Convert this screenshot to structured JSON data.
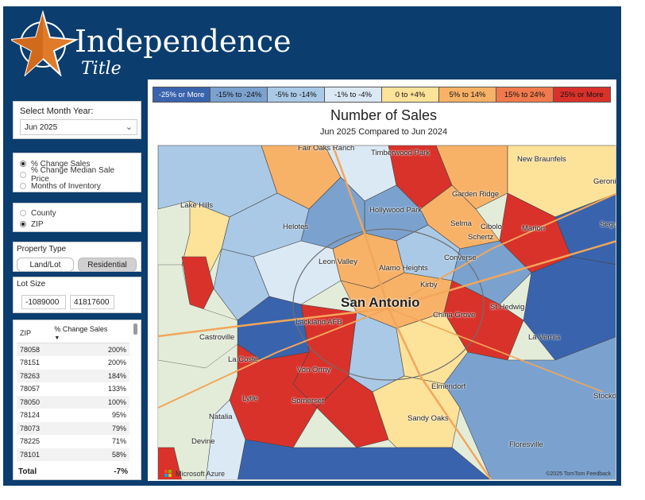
{
  "brand": {
    "name": "Independence",
    "sub": "Title"
  },
  "month_filter": {
    "label": "Select Month Year:",
    "value": "Jun 2025"
  },
  "metric_options": [
    {
      "label": "% Change Sales",
      "selected": true
    },
    {
      "label": "% Change Median Sale Price",
      "selected": false
    },
    {
      "label": "Months of Inventory",
      "selected": false
    }
  ],
  "geo_options": [
    {
      "label": "County",
      "selected": false
    },
    {
      "label": "ZIP",
      "selected": true
    }
  ],
  "property_type": {
    "label": "Property Type",
    "options": [
      "Land/Lot",
      "Residential"
    ],
    "selected": "Residential"
  },
  "lot_size": {
    "label": "Lot Size",
    "min": "-1089000",
    "max": "41817600"
  },
  "zip_table": {
    "headers": [
      "ZIP",
      "% Change Sales"
    ],
    "rows": [
      [
        "78058",
        "200%"
      ],
      [
        "78151",
        "200%"
      ],
      [
        "78263",
        "184%"
      ],
      [
        "78057",
        "133%"
      ],
      [
        "78050",
        "100%"
      ],
      [
        "78124",
        "95%"
      ],
      [
        "78073",
        "79%"
      ],
      [
        "78225",
        "71%"
      ],
      [
        "78101",
        "58%"
      ]
    ],
    "total_label": "Total",
    "total_value": "-7%"
  },
  "legend": [
    {
      "label": "-25% or More",
      "color": "#3a63ad"
    },
    {
      "label": "-15% to -24%",
      "color": "#7ba2cf"
    },
    {
      "label": "-5% to -14%",
      "color": "#a9c9e6"
    },
    {
      "label": "-1% to -4%",
      "color": "#dbe9f5"
    },
    {
      "label": "0 to +4%",
      "color": "#fde29a"
    },
    {
      "label": "5% to 14%",
      "color": "#f8b268"
    },
    {
      "label": "15% to 24%",
      "color": "#f07a4d"
    },
    {
      "label": "25% or More",
      "color": "#d9322b"
    }
  ],
  "chart": {
    "title": "Number of Sales",
    "subtitle": "Jun 2025 Compared to Jun 2024"
  },
  "map": {
    "places": [
      "Fair Oaks Ranch",
      "Timberwood Park",
      "New Braunfels",
      "Garden Ridge",
      "Lake Hills",
      "Hollywood Park",
      "Selma",
      "Cibolo",
      "Marion",
      "Schertz",
      "Helotes",
      "Converse",
      "Leon Valley",
      "Alamo Heights",
      "Kirby",
      "San Antonio",
      "St Hedwig",
      "Lackland AFB",
      "China Grove",
      "Castroville",
      "La Vernia",
      "La Coste",
      "Von Ormy",
      "Elmendorf",
      "Lytle",
      "Somerset",
      "Sandy Oaks",
      "Natalia",
      "Devine",
      "Floresville",
      "Stockdale",
      "Geronimo",
      "Seguin"
    ],
    "attribution_left": "Microsoft Azure",
    "attribution_right": "©2025 TomTom  Feedback"
  }
}
